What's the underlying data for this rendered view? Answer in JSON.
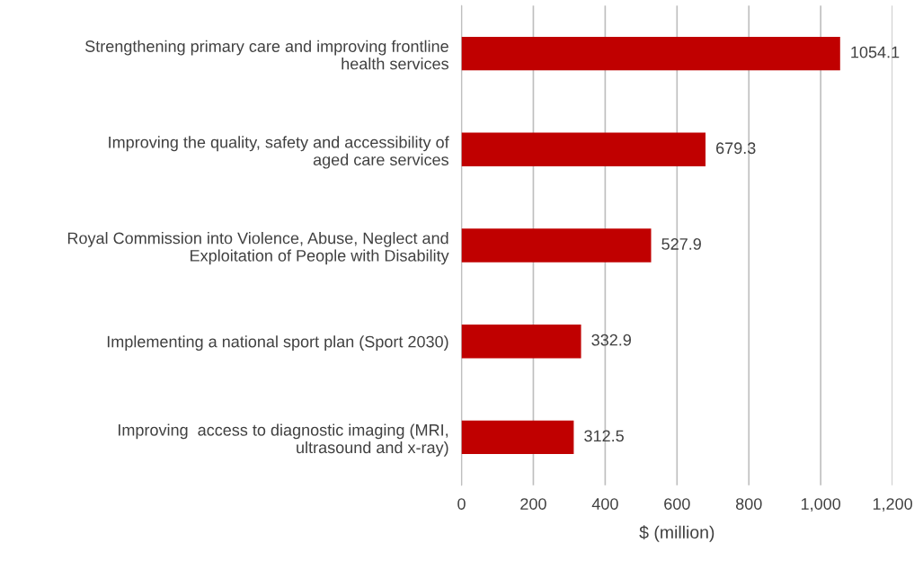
{
  "chart_data": {
    "type": "bar",
    "orientation": "horizontal",
    "xlabel": "$ (million)",
    "categories": [
      "Strengthening primary care and improving frontline\nhealth services",
      "Improving the quality, safety and accessibility of\naged care services",
      "Royal Commission into Violence, Abuse, Neglect and\nExploitation of People with Disability",
      "Implementing a national sport plan (Sport 2030)",
      "Improving  access to diagnostic imaging (MRI,\nultrasound and x-ray)"
    ],
    "values": [
      1054.1,
      679.3,
      527.9,
      332.9,
      312.5
    ],
    "color": "#c00000",
    "xlim": [
      0,
      1200
    ],
    "xticks": [
      0,
      200,
      400,
      600,
      800,
      {
        "value": 1000,
        "label": "1,000"
      },
      {
        "value": 1200,
        "label": "1,200"
      }
    ],
    "grid": "x",
    "data_labels": true,
    "legend": false
  }
}
